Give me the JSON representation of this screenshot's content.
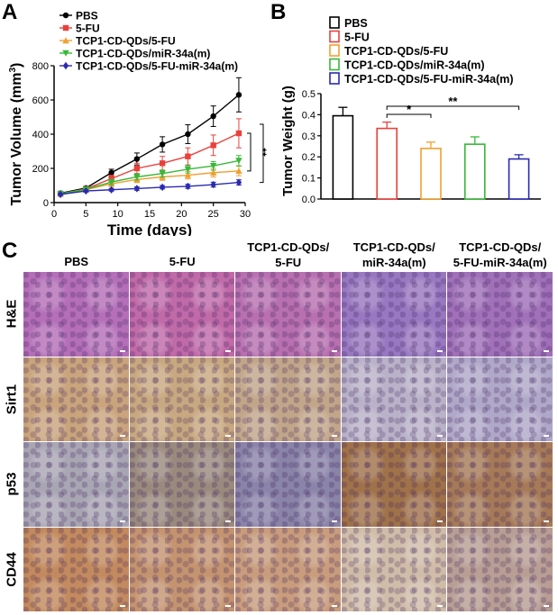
{
  "panels": {
    "a": "A",
    "b": "B",
    "c": "C"
  },
  "chart_data": [
    {
      "type": "line",
      "ylabel": "Tumor Volume (mm",
      "ylabel_sup": "3",
      "ylabel_close": ")",
      "xlabel": "Time (days)",
      "xlim": [
        0,
        30
      ],
      "ylim": [
        0,
        800
      ],
      "xticks": [
        "0",
        "5",
        "10",
        "15",
        "20",
        "25",
        "30"
      ],
      "yticks": [
        "0",
        "200",
        "400",
        "600",
        "800"
      ],
      "x": [
        1,
        5,
        9,
        13,
        17,
        21,
        25,
        29
      ],
      "series": [
        {
          "name": "PBS",
          "color": "#000000",
          "marker": "circle",
          "values": [
            55,
            85,
            175,
            255,
            340,
            400,
            505,
            630
          ],
          "errors": [
            8,
            10,
            20,
            35,
            45,
            55,
            60,
            100
          ]
        },
        {
          "name": "5-FU",
          "color": "#e8413c",
          "marker": "square",
          "values": [
            52,
            80,
            140,
            200,
            230,
            270,
            335,
            405
          ],
          "errors": [
            8,
            10,
            20,
            30,
            40,
            50,
            60,
            85
          ]
        },
        {
          "name": "TCP1-CD-QDs/5-FU",
          "color": "#f0a030",
          "marker": "triangle",
          "values": [
            50,
            75,
            110,
            135,
            150,
            160,
            175,
            185
          ],
          "errors": [
            6,
            8,
            15,
            18,
            20,
            22,
            25,
            28
          ]
        },
        {
          "name": "TCP1-CD-QDs/miR-34a(m)",
          "color": "#38b838",
          "marker": "triangle-down",
          "values": [
            52,
            78,
            120,
            150,
            170,
            195,
            215,
            245
          ],
          "errors": [
            6,
            8,
            15,
            18,
            20,
            22,
            25,
            30
          ]
        },
        {
          "name": "TCP1-CD-QDs/5-FU-miR-34a(m)",
          "color": "#2a2ab0",
          "marker": "diamond",
          "values": [
            48,
            68,
            75,
            82,
            90,
            95,
            105,
            118
          ],
          "errors": [
            5,
            6,
            8,
            10,
            10,
            12,
            14,
            15
          ]
        }
      ],
      "significance": [
        "**",
        "***"
      ],
      "legend": "top-left"
    },
    {
      "type": "bar",
      "ylabel": "Tumor Weight (g)",
      "ylim": [
        0,
        0.5
      ],
      "yticks": [
        "0.0",
        "0.1",
        "0.2",
        "0.3",
        "0.4",
        "0.5"
      ],
      "categories": [
        "PBS",
        "5-FU",
        "TCP1-CD-QDs/5-FU",
        "TCP1-CD-QDs/miR-34a(m)",
        "TCP1-CD-QDs/5-FU-miR-34a(m)"
      ],
      "values": [
        0.395,
        0.335,
        0.24,
        0.26,
        0.19
      ],
      "errors": [
        0.04,
        0.03,
        0.03,
        0.035,
        0.02
      ],
      "colors": [
        "#000000",
        "#e8413c",
        "#f0a030",
        "#38b838",
        "#2a2ab0"
      ],
      "significance": [
        "*",
        "**"
      ],
      "legend": "top"
    }
  ],
  "micrographs": {
    "columns": [
      {
        "line1": "PBS",
        "line2": ""
      },
      {
        "line1": "5-FU",
        "line2": ""
      },
      {
        "line1": "TCP1-CD-QDs/",
        "line2": "5-FU"
      },
      {
        "line1": "TCP1-CD-QDs/",
        "line2": "miR-34a(m)"
      },
      {
        "line1": "TCP1-CD-QDs/",
        "line2": "5-FU-miR-34a(m)"
      }
    ],
    "rows": [
      "H&E",
      "Sirt1",
      "p53",
      "CD44"
    ],
    "row_colors": {
      "H&E": [
        "#b46fb8",
        "#c06aa8",
        "#b870b0",
        "#9878c0",
        "#a070b8"
      ],
      "Sirt1": [
        "#c9a47c",
        "#c8a880",
        "#c2a68a",
        "#b9b2c8",
        "#b0a8c8"
      ],
      "p53": [
        "#a9a6b4",
        "#9a8a7e",
        "#8a84a8",
        "#a0724a",
        "#a67a58"
      ],
      "CD44": [
        "#c28a5e",
        "#c49470",
        "#c89c7c",
        "#d0bca8",
        "#b89e94"
      ]
    }
  }
}
